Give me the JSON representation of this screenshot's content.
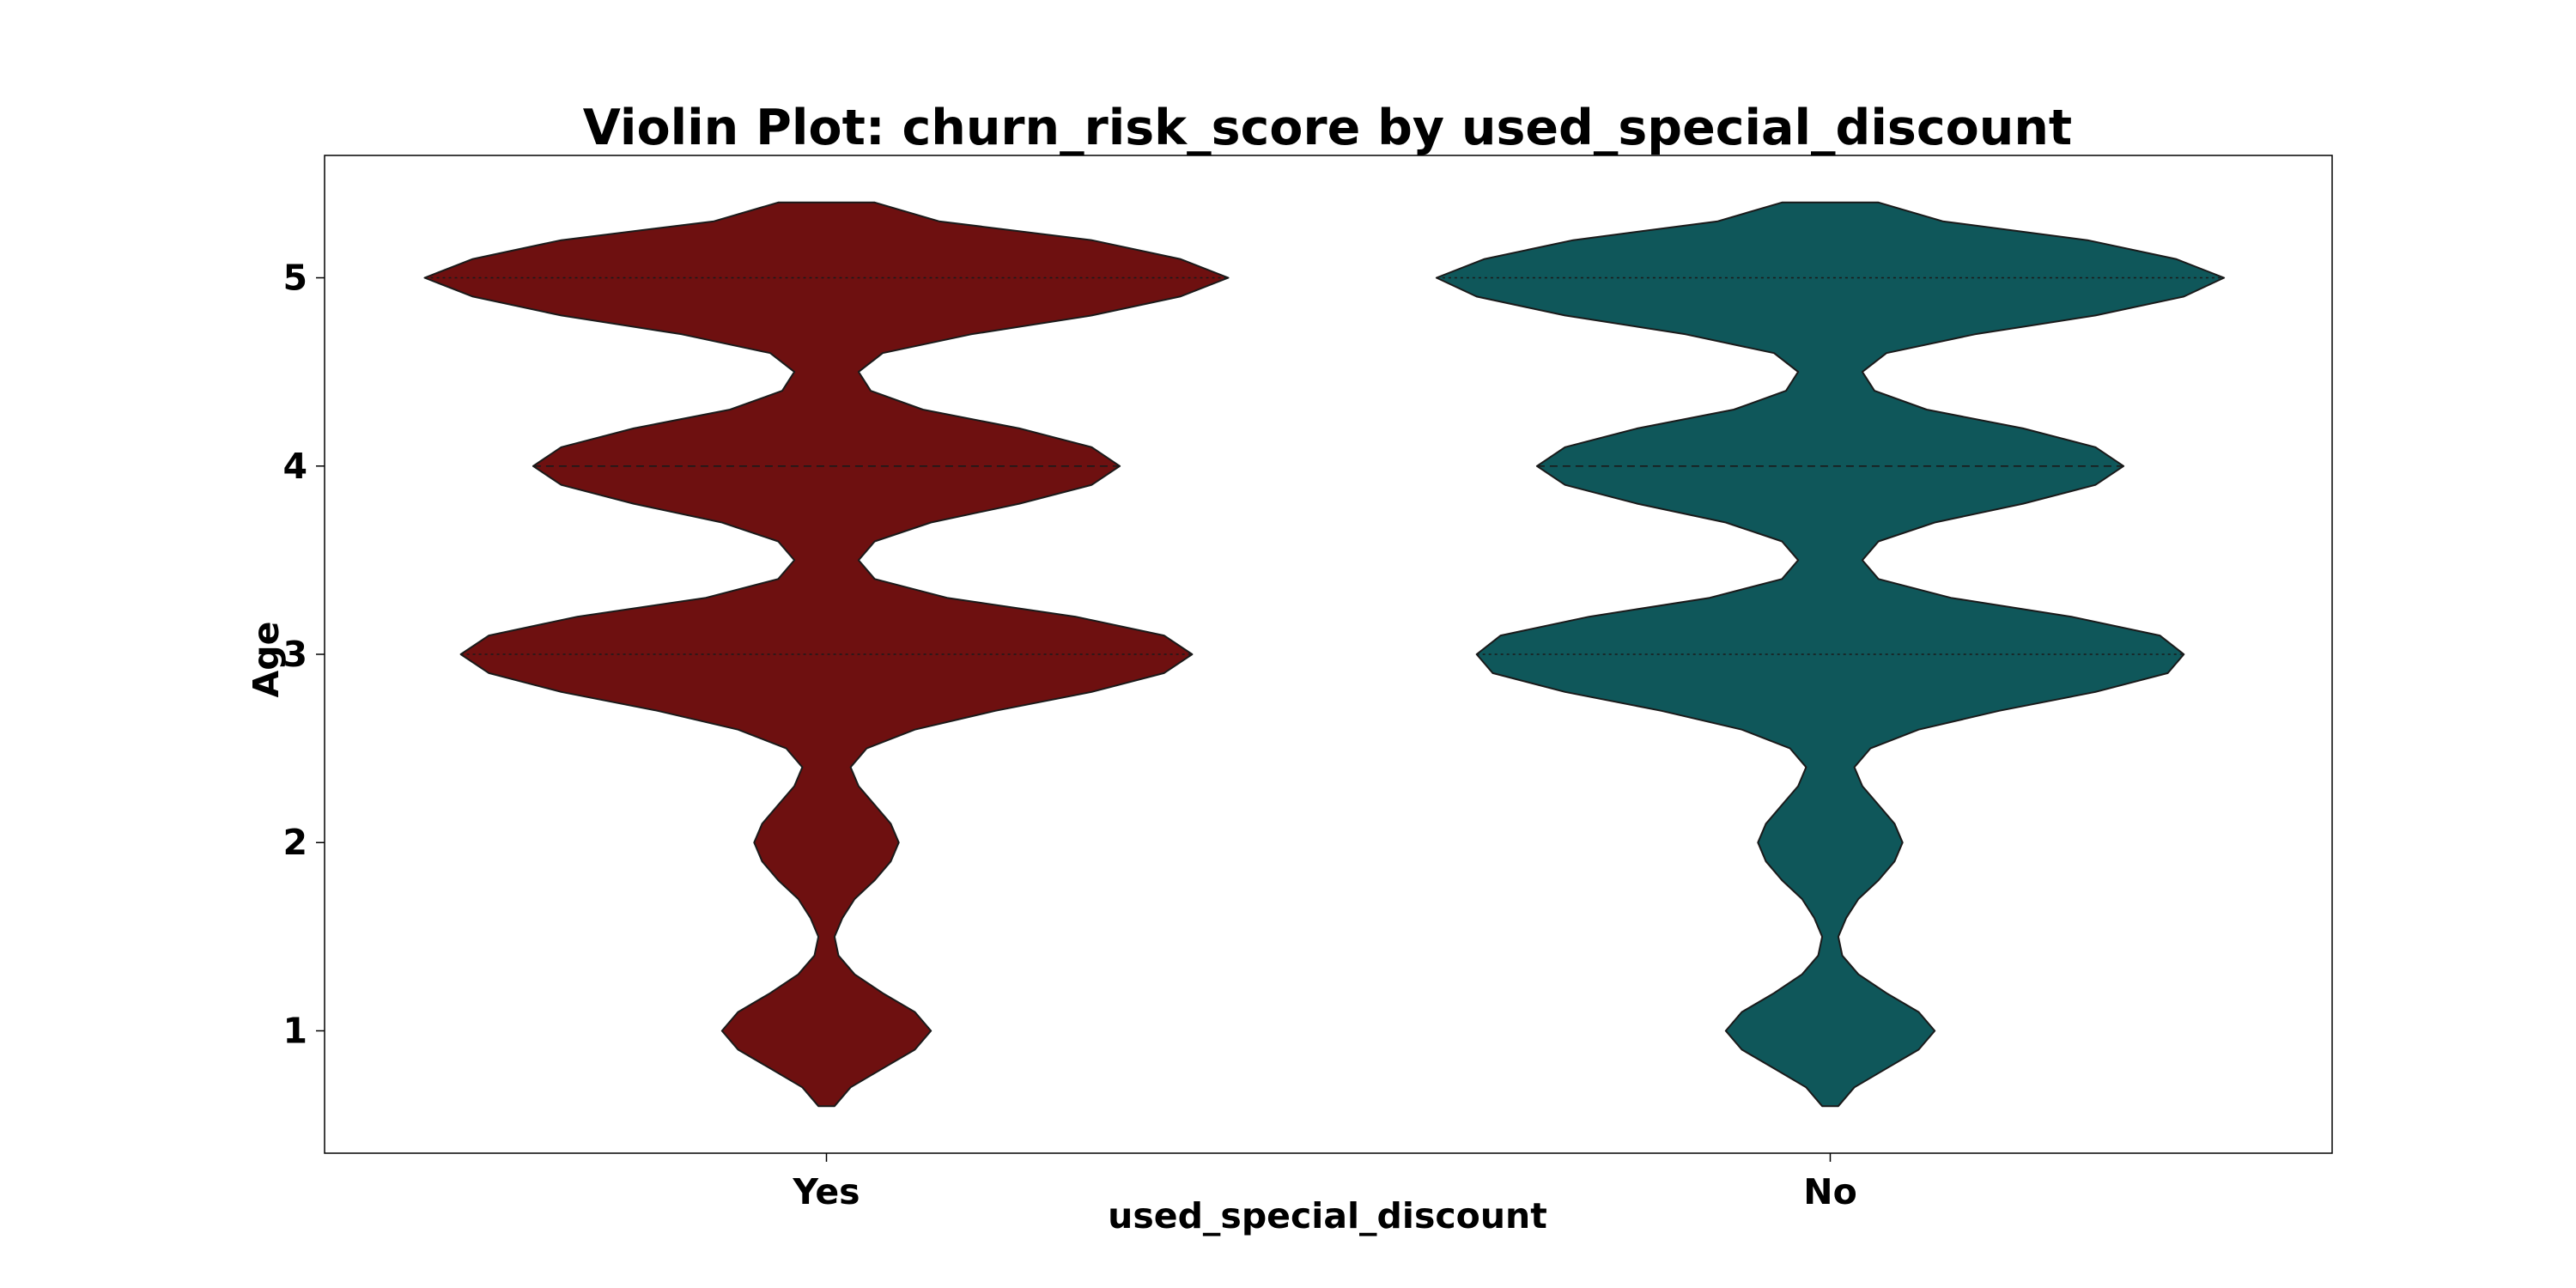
{
  "chart_data": {
    "type": "violin",
    "title": "Violin Plot: churn_risk_score by used_special_discount",
    "xlabel": "used_special_discount",
    "ylabel": "Age",
    "categories": [
      "Yes",
      "No"
    ],
    "colors": [
      "#6e1010",
      "#0f575a"
    ],
    "ylim": [
      0.35,
      5.65
    ],
    "yticks": [
      1,
      2,
      3,
      4,
      5
    ],
    "series": [
      {
        "category": "Yes",
        "y_range": [
          0.6,
          5.4
        ],
        "quartiles": [
          3,
          4,
          5
        ],
        "density_half_width": [
          [
            0.6,
            0.02
          ],
          [
            0.7,
            0.06
          ],
          [
            0.8,
            0.14
          ],
          [
            0.9,
            0.22
          ],
          [
            1.0,
            0.26
          ],
          [
            1.1,
            0.22
          ],
          [
            1.2,
            0.14
          ],
          [
            1.3,
            0.07
          ],
          [
            1.4,
            0.03
          ],
          [
            1.5,
            0.02
          ],
          [
            1.6,
            0.04
          ],
          [
            1.7,
            0.07
          ],
          [
            1.8,
            0.12
          ],
          [
            1.9,
            0.16
          ],
          [
            2.0,
            0.18
          ],
          [
            2.1,
            0.16
          ],
          [
            2.2,
            0.12
          ],
          [
            2.3,
            0.08
          ],
          [
            2.4,
            0.06
          ],
          [
            2.5,
            0.1
          ],
          [
            2.6,
            0.22
          ],
          [
            2.7,
            0.42
          ],
          [
            2.8,
            0.66
          ],
          [
            2.9,
            0.84
          ],
          [
            3.0,
            0.91
          ],
          [
            3.1,
            0.84
          ],
          [
            3.2,
            0.62
          ],
          [
            3.3,
            0.3
          ],
          [
            3.4,
            0.12
          ],
          [
            3.5,
            0.08
          ],
          [
            3.6,
            0.12
          ],
          [
            3.7,
            0.26
          ],
          [
            3.8,
            0.48
          ],
          [
            3.9,
            0.66
          ],
          [
            4.0,
            0.73
          ],
          [
            4.1,
            0.66
          ],
          [
            4.2,
            0.48
          ],
          [
            4.3,
            0.24
          ],
          [
            4.4,
            0.11
          ],
          [
            4.5,
            0.08
          ],
          [
            4.6,
            0.14
          ],
          [
            4.7,
            0.36
          ],
          [
            4.8,
            0.66
          ],
          [
            4.9,
            0.88
          ],
          [
            5.0,
            1.0
          ],
          [
            5.1,
            0.88
          ],
          [
            5.2,
            0.66
          ],
          [
            5.3,
            0.28
          ],
          [
            5.4,
            0.12
          ]
        ]
      },
      {
        "category": "No",
        "y_range": [
          0.6,
          5.4
        ],
        "quartiles": [
          3,
          4,
          5
        ],
        "density_half_width": [
          [
            0.6,
            0.02
          ],
          [
            0.7,
            0.06
          ],
          [
            0.8,
            0.14
          ],
          [
            0.9,
            0.22
          ],
          [
            1.0,
            0.26
          ],
          [
            1.1,
            0.22
          ],
          [
            1.2,
            0.14
          ],
          [
            1.3,
            0.07
          ],
          [
            1.4,
            0.03
          ],
          [
            1.5,
            0.02
          ],
          [
            1.6,
            0.04
          ],
          [
            1.7,
            0.07
          ],
          [
            1.8,
            0.12
          ],
          [
            1.9,
            0.16
          ],
          [
            2.0,
            0.18
          ],
          [
            2.1,
            0.16
          ],
          [
            2.2,
            0.12
          ],
          [
            2.3,
            0.08
          ],
          [
            2.4,
            0.06
          ],
          [
            2.5,
            0.1
          ],
          [
            2.6,
            0.22
          ],
          [
            2.7,
            0.42
          ],
          [
            2.8,
            0.66
          ],
          [
            2.9,
            0.84
          ],
          [
            3.0,
            0.88
          ],
          [
            3.1,
            0.82
          ],
          [
            3.2,
            0.6
          ],
          [
            3.3,
            0.3
          ],
          [
            3.4,
            0.12
          ],
          [
            3.5,
            0.08
          ],
          [
            3.6,
            0.12
          ],
          [
            3.7,
            0.26
          ],
          [
            3.8,
            0.48
          ],
          [
            3.9,
            0.66
          ],
          [
            4.0,
            0.73
          ],
          [
            4.1,
            0.66
          ],
          [
            4.2,
            0.48
          ],
          [
            4.3,
            0.24
          ],
          [
            4.4,
            0.11
          ],
          [
            4.5,
            0.08
          ],
          [
            4.6,
            0.14
          ],
          [
            4.7,
            0.36
          ],
          [
            4.8,
            0.66
          ],
          [
            4.9,
            0.88
          ],
          [
            5.0,
            0.98
          ],
          [
            5.1,
            0.86
          ],
          [
            5.2,
            0.64
          ],
          [
            5.3,
            0.28
          ],
          [
            5.4,
            0.12
          ]
        ]
      }
    ],
    "grid": false,
    "legend": "none"
  }
}
